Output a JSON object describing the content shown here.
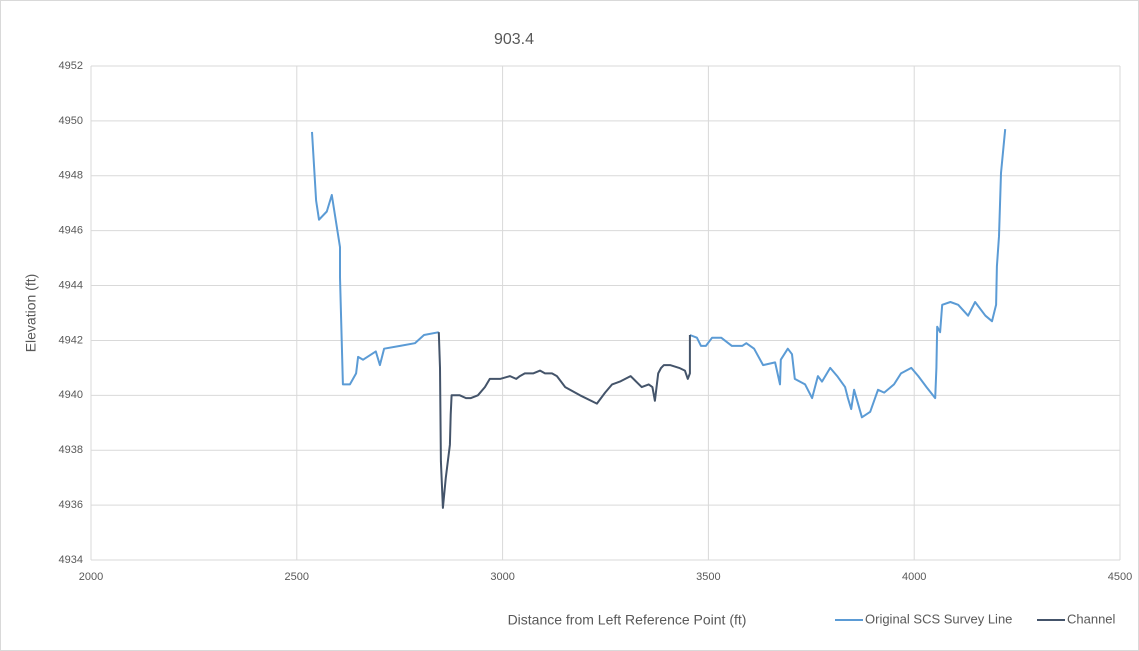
{
  "chart_data": {
    "type": "line",
    "title": "903.4",
    "x_label": "Distance from Left Reference Point (ft)",
    "y_label": "Elevation (ft)",
    "xlim": [
      2000,
      4500
    ],
    "xticks": [
      2000,
      2500,
      3000,
      3500,
      4000,
      4500
    ],
    "ylim": [
      4934,
      4952
    ],
    "yticks": [
      4934,
      4936,
      4938,
      4940,
      4942,
      4944,
      4946,
      4948,
      4950,
      4952
    ],
    "grid": true,
    "legend": "bottom-right",
    "series": [
      {
        "name": "Original SCS Survey Line",
        "color": "#5b9bd5",
        "x": [
          2537,
          2547,
          2554,
          2573,
          2585,
          2605,
          2605,
          2612,
          2629,
          2644,
          2649,
          2661,
          2692,
          2702,
          2712,
          2751,
          2787,
          2809,
          2845,
          null,
          3455,
          3472,
          3482,
          3494,
          3509,
          3531,
          3557,
          3582,
          3592,
          3611,
          3633,
          3662,
          3674,
          3676,
          3693,
          3703,
          3710,
          3735,
          3752,
          3766,
          3776,
          3796,
          3813,
          3832,
          3839,
          3847,
          3854,
          3873,
          3893,
          3912,
          3927,
          3951,
          3968,
          3993,
          4010,
          4030,
          4051,
          4054,
          4056,
          4063,
          4068,
          4088,
          4107,
          4131,
          4148,
          4173,
          4189,
          4199,
          4201,
          4206,
          4211,
          4221
        ],
        "values": [
          4949.6,
          4947.1,
          4946.4,
          4946.7,
          4947.3,
          4945.4,
          4944.3,
          4940.4,
          4940.4,
          4940.8,
          4941.4,
          4941.3,
          4941.6,
          4941.1,
          4941.7,
          4941.8,
          4941.9,
          4942.2,
          4942.3,
          null,
          4942.2,
          4942.1,
          4941.8,
          4941.8,
          4942.1,
          4942.1,
          4941.8,
          4941.8,
          4941.9,
          4941.7,
          4941.1,
          4941.2,
          4940.4,
          4941.3,
          4941.7,
          4941.5,
          4940.6,
          4940.4,
          4939.9,
          4940.7,
          4940.5,
          4941.0,
          4940.7,
          4940.3,
          4939.9,
          4939.5,
          4940.2,
          4939.2,
          4939.4,
          4940.2,
          4940.1,
          4940.4,
          4940.8,
          4941.0,
          4940.7,
          4940.3,
          4939.9,
          4941.0,
          4942.5,
          4942.3,
          4943.3,
          4943.4,
          4943.3,
          4942.9,
          4943.4,
          4942.9,
          4942.7,
          4943.3,
          4944.7,
          4945.8,
          4948.1,
          4949.7
        ]
      },
      {
        "name": "Channel",
        "color": "#44546a",
        "x": [
          2845,
          2848,
          2850,
          2855,
          2862,
          2872,
          2874,
          2876,
          2896,
          2911,
          2923,
          2940,
          2957,
          2969,
          2994,
          3018,
          3033,
          3042,
          3054,
          3074,
          3091,
          3103,
          3120,
          3132,
          3152,
          3188,
          3229,
          3249,
          3266,
          3285,
          3311,
          3338,
          3355,
          3364,
          3370,
          3378,
          3385,
          3392,
          3407,
          3429,
          3443,
          3450,
          3455,
          3455
        ],
        "values": [
          4942.3,
          4941.0,
          4937.6,
          4935.9,
          4937.0,
          4938.2,
          4939.3,
          4940.0,
          4940.0,
          4939.9,
          4939.9,
          4940.0,
          4940.3,
          4940.6,
          4940.6,
          4940.7,
          4940.6,
          4940.7,
          4940.8,
          4940.8,
          4940.9,
          4940.8,
          4940.8,
          4940.7,
          4940.3,
          4940.0,
          4939.7,
          4940.1,
          4940.4,
          4940.5,
          4940.7,
          4940.3,
          4940.4,
          4940.3,
          4939.8,
          4940.8,
          4941.0,
          4941.1,
          4941.1,
          4941.0,
          4940.9,
          4940.6,
          4940.8,
          4942.2
        ]
      }
    ]
  }
}
